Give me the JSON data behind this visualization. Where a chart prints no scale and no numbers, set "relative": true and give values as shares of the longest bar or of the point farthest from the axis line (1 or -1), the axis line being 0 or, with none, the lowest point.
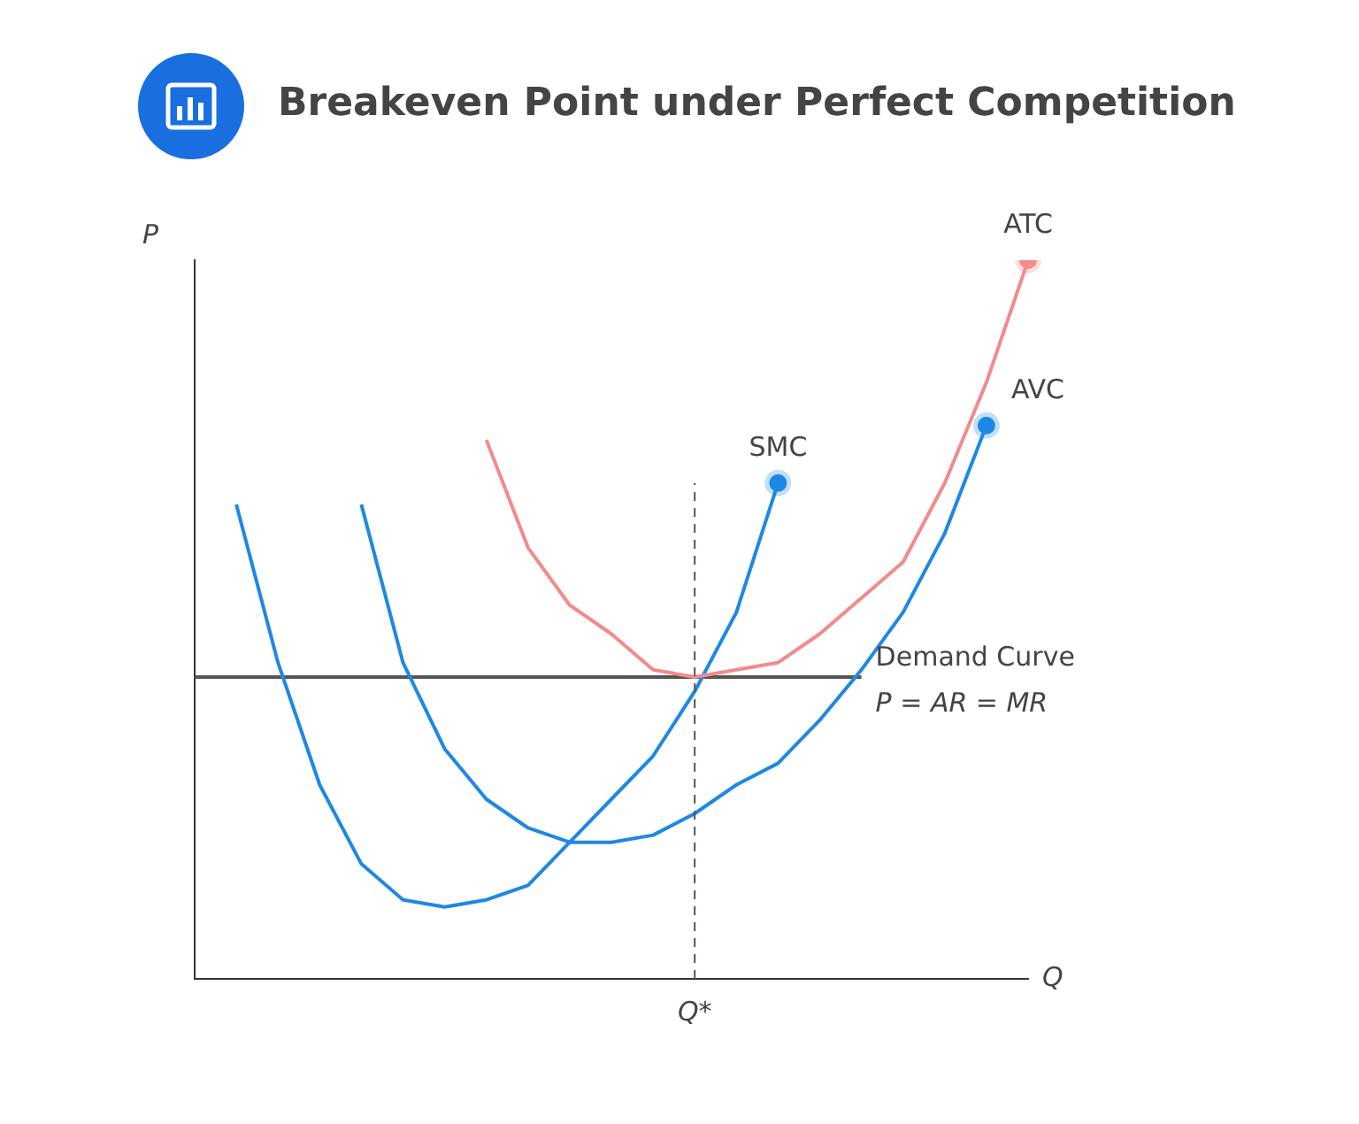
{
  "chart_data": {
    "type": "line",
    "title": "Breakeven Point under Perfect Competition",
    "xlabel": "Q",
    "ylabel": "P",
    "relative": true,
    "legend": false,
    "categories": [
      null,
      null,
      null,
      null,
      null,
      null,
      null,
      null,
      null,
      null,
      null,
      null,
      null,
      null,
      null,
      null,
      null,
      null,
      null,
      null,
      null
    ],
    "series": [
      {
        "name": "ATC",
        "color": "#f28b8b",
        "values": [
          null,
          null,
          null,
          null,
          null,
          null,
          null,
          0.75,
          0.6,
          0.52,
          0.48,
          0.43,
          0.42,
          0.43,
          0.44,
          0.48,
          0.53,
          0.58,
          0.69,
          0.83,
          1.0
        ]
      },
      {
        "name": "AVC",
        "color": "#1e88e5",
        "values": [
          null,
          null,
          null,
          null,
          0.66,
          0.44,
          0.32,
          0.25,
          0.21,
          0.19,
          0.19,
          0.2,
          0.23,
          0.27,
          0.3,
          0.36,
          0.43,
          0.51,
          0.62,
          0.77,
          null
        ]
      },
      {
        "name": "SMC",
        "color": "#1e88e5",
        "values": [
          null,
          0.66,
          0.44,
          0.27,
          0.16,
          0.11,
          0.1,
          0.11,
          0.13,
          0.19,
          0.25,
          0.31,
          0.4,
          0.51,
          0.69,
          null,
          null,
          null,
          null,
          null,
          null
        ]
      },
      {
        "name": "Demand Curve",
        "color": "#555555",
        "line_style": "solid",
        "values": [
          0.42,
          0.42,
          0.42,
          0.42,
          0.42,
          0.42,
          0.42,
          0.42,
          0.42,
          0.42,
          0.42,
          0.42,
          0.42,
          0.42,
          0.42,
          0.42,
          0.42,
          null,
          null,
          null,
          null
        ]
      }
    ],
    "annotations": [
      "P = AR = MR",
      "Q*"
    ]
  }
}
